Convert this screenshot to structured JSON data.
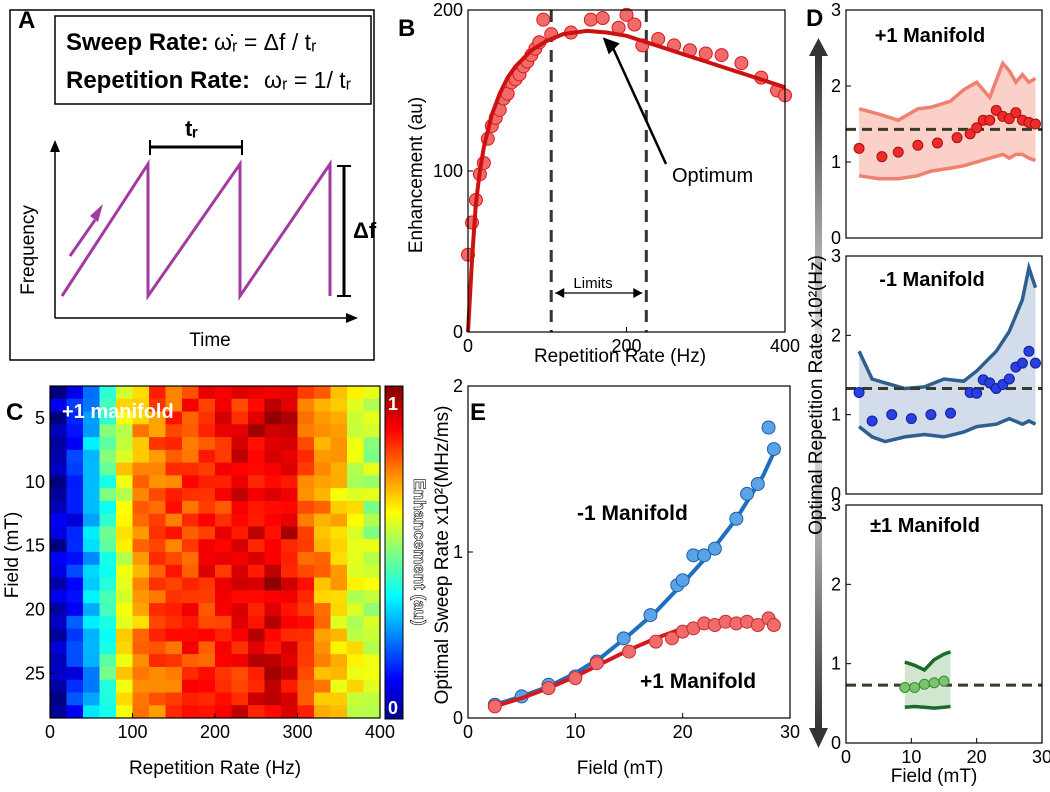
{
  "colors": {
    "red": "#d7191c",
    "red_marker": "#f26b6b",
    "red_band": "#fbd0c8",
    "red_band_edge": "#f08070",
    "blue": "#1f6fc1",
    "blue_marker": "#5aa3e6",
    "blue_dark": "#2e5f8f",
    "blue_band": "#d2dcea",
    "blue_point": "#2a3fe0",
    "green": "#1d6b2a",
    "green_band": "#d0e6cf",
    "green_marker": "#7ac46c",
    "purple": "#a33aa1",
    "dashed": "#3a3a2a"
  },
  "chart_data": [
    {
      "id": "A",
      "type": "diagram",
      "panel_label": "A",
      "title_lines": {
        "sweep_label": "Sweep Rate:",
        "sweep_formula": "ω̇ᵣ = Δf / tᵣ",
        "rep_label": "Repetition Rate:",
        "rep_formula": "ωᵣ = 1/ tᵣ"
      },
      "period_label": "tᵣ",
      "amplitude_label": "Δf",
      "xlabel": "Time",
      "ylabel": "Frequency",
      "sawtooth_periods": 3
    },
    {
      "id": "B",
      "type": "scatter",
      "panel_label": "B",
      "xlabel": "Repetition Rate (Hz)",
      "ylabel": "Enhancement (au)",
      "xlim": [
        0,
        400
      ],
      "ylim": [
        0,
        200
      ],
      "xticks": [
        0,
        200,
        400
      ],
      "yticks": [
        0,
        100,
        200
      ],
      "points": {
        "x": [
          0,
          5,
          10,
          15,
          20,
          25,
          30,
          35,
          40,
          45,
          50,
          55,
          60,
          65,
          70,
          75,
          80,
          85,
          90,
          95,
          105,
          130,
          155,
          170,
          190,
          200,
          210,
          220,
          240,
          260,
          280,
          300,
          320,
          345,
          370,
          390,
          400
        ],
        "y": [
          48,
          68,
          82,
          98,
          105,
          120,
          128,
          133,
          138,
          145,
          148,
          155,
          157,
          160,
          165,
          168,
          172,
          176,
          180,
          194,
          185,
          186,
          194,
          195,
          189,
          197,
          191,
          178,
          182,
          178,
          175,
          173,
          172,
          167,
          158,
          150,
          147
        ]
      },
      "fit": {
        "x": [
          0,
          5,
          10,
          15,
          20,
          30,
          40,
          50,
          60,
          80,
          100,
          120,
          150,
          175,
          200,
          225,
          250,
          275,
          300,
          325,
          350,
          375,
          400
        ],
        "y": [
          0,
          45,
          80,
          100,
          115,
          135,
          148,
          158,
          165,
          175,
          181,
          185,
          187,
          186,
          184,
          180,
          176,
          172,
          168,
          164,
          160,
          156,
          152
        ]
      },
      "vlines": [
        105,
        225
      ],
      "limits_label": "Limits",
      "annotation": {
        "text": "Optimum",
        "target_x": 170,
        "target_y": 183
      }
    },
    {
      "id": "C",
      "type": "heatmap",
      "panel_label": "C",
      "inner_label": "+1 manifold",
      "xlabel": "Repetition Rate (Hz)",
      "ylabel": "Field (mT)",
      "xlim": [
        0,
        400
      ],
      "ylim": [
        2.5,
        28.5
      ],
      "xticks": [
        0,
        100,
        200,
        300,
        400
      ],
      "yticks": [
        5,
        10,
        15,
        20,
        25
      ],
      "n_cols": 20,
      "n_rows": 26,
      "colorbar_label": "Enhancement (au)",
      "colorbar_ticks": [
        "1",
        "0"
      ],
      "profile": [
        0.05,
        0.15,
        0.3,
        0.45,
        0.62,
        0.72,
        0.78,
        0.8,
        0.82,
        0.84,
        0.85,
        0.87,
        0.9,
        0.92,
        0.9,
        0.8,
        0.72,
        0.66,
        0.6,
        0.55
      ]
    },
    {
      "id": "E",
      "type": "line",
      "panel_label": "E",
      "xlabel": "Field (mT)",
      "ylabel": "Optimal Sweep Rate x10²(MHz/ms)",
      "xlim": [
        0,
        30
      ],
      "ylim": [
        0,
        2
      ],
      "xticks": [
        0,
        10,
        20,
        30
      ],
      "yticks": [
        0,
        1,
        2
      ],
      "series": [
        {
          "name": "-1 Manifold",
          "points": {
            "x": [
              2.5,
              5,
              7.5,
              10,
              12,
              14.5,
              17,
              19.5,
              20,
              21,
              22,
              23,
              25,
              26,
              27,
              28,
              28.5
            ],
            "y": [
              0.08,
              0.13,
              0.2,
              0.25,
              0.34,
              0.48,
              0.62,
              0.8,
              0.83,
              0.98,
              0.98,
              1.02,
              1.2,
              1.35,
              1.41,
              1.75,
              1.62
            ]
          },
          "fit": {
            "x": [
              2.5,
              5,
              7.5,
              10,
              12.5,
              15,
              17.5,
              20,
              22.5,
              25,
              27.5,
              28.5
            ],
            "y": [
              0.08,
              0.13,
              0.19,
              0.27,
              0.37,
              0.5,
              0.64,
              0.81,
              0.99,
              1.2,
              1.46,
              1.6
            ]
          }
        },
        {
          "name": "+1 Manifold",
          "points": {
            "x": [
              2.5,
              7.5,
              10,
              12,
              15,
              17.5,
              19,
              20,
              21,
              22,
              23,
              24,
              25,
              26,
              27,
              28,
              28.5
            ],
            "y": [
              0.07,
              0.18,
              0.24,
              0.33,
              0.4,
              0.46,
              0.48,
              0.52,
              0.54,
              0.57,
              0.56,
              0.58,
              0.57,
              0.58,
              0.56,
              0.6,
              0.56
            ]
          },
          "fit": {
            "x": [
              2.5,
              5,
              7.5,
              10,
              12.5,
              15,
              17.5,
              20,
              22.5,
              25,
              27.5,
              28.5
            ],
            "y": [
              0.07,
              0.12,
              0.18,
              0.25,
              0.33,
              0.41,
              0.48,
              0.54,
              0.58,
              0.59,
              0.58,
              0.57
            ]
          }
        }
      ]
    },
    {
      "id": "D",
      "type": "scatter",
      "panel_label": "D",
      "ylabel": "Optimal Repetition Rate x10²(Hz)",
      "xlabel": "Field (mT)",
      "xlim": [
        0,
        30
      ],
      "ylim": [
        0,
        3
      ],
      "xticks": [
        0,
        10,
        20,
        30
      ],
      "yticks": [
        0,
        1,
        2,
        3
      ],
      "subplots": [
        {
          "name": "+1 Manifold",
          "mean": 1.43,
          "points": {
            "x": [
              2,
              5.5,
              8,
              11,
              14,
              17,
              19,
              20,
              21,
              22,
              23,
              24,
              25,
              26,
              27,
              28,
              29
            ],
            "y": [
              1.18,
              1.07,
              1.13,
              1.22,
              1.25,
              1.32,
              1.37,
              1.45,
              1.55,
              1.55,
              1.68,
              1.6,
              1.57,
              1.65,
              1.55,
              1.52,
              1.5
            ]
          },
          "band_upper": {
            "x": [
              2,
              5,
              8,
              11,
              13,
              16,
              18,
              20,
              22,
              24,
              25,
              26,
              27,
              28,
              29
            ],
            "y": [
              1.7,
              1.63,
              1.55,
              1.7,
              1.72,
              1.8,
              1.95,
              2.05,
              1.85,
              2.3,
              2.2,
              2.05,
              2.15,
              2.05,
              2.1
            ]
          },
          "band_lower": {
            "x": [
              2,
              5,
              8,
              11,
              13,
              16,
              18,
              20,
              22,
              24,
              25,
              26,
              27,
              28,
              29
            ],
            "y": [
              0.82,
              0.78,
              0.78,
              0.82,
              0.88,
              0.92,
              0.95,
              1,
              1.05,
              1.1,
              1.05,
              1.1,
              1.1,
              1.05,
              1.02
            ]
          }
        },
        {
          "name": "-1 Manifold",
          "mean": 1.33,
          "points": {
            "x": [
              2,
              4,
              7,
              10,
              13,
              16,
              19,
              20,
              21,
              22,
              23,
              24,
              25,
              26,
              27,
              28,
              29
            ],
            "y": [
              1.28,
              0.92,
              1,
              0.95,
              1,
              1.02,
              1.28,
              1.27,
              1.44,
              1.4,
              1.33,
              1.38,
              1.45,
              1.6,
              1.65,
              1.8,
              1.65
            ]
          },
          "band_upper": {
            "x": [
              2,
              4,
              6,
              9,
              12,
              15,
              18,
              20,
              23,
              25,
              27,
              28,
              29
            ],
            "y": [
              1.8,
              1.45,
              1.4,
              1.33,
              1.35,
              1.45,
              1.42,
              1.55,
              1.8,
              2.05,
              2.45,
              2.85,
              2.6
            ]
          },
          "band_lower": {
            "x": [
              2,
              4,
              6,
              9,
              12,
              15,
              18,
              20,
              23,
              25,
              27,
              28,
              29
            ],
            "y": [
              0.85,
              0.72,
              0.66,
              0.72,
              0.75,
              0.72,
              0.78,
              0.85,
              0.88,
              0.95,
              0.88,
              0.92,
              0.88
            ]
          }
        },
        {
          "name": "±1 Manifold",
          "mean": 0.73,
          "points": {
            "x": [
              9,
              10.5,
              12,
              13.5,
              15
            ],
            "y": [
              0.7,
              0.7,
              0.74,
              0.76,
              0.78
            ]
          },
          "band_upper": {
            "x": [
              9,
              10.5,
              12,
              13.5,
              15,
              16
            ],
            "y": [
              1.02,
              0.98,
              0.92,
              1.05,
              1.12,
              1.15
            ]
          },
          "band_lower": {
            "x": [
              9,
              10.5,
              12,
              13.5,
              15,
              16
            ],
            "y": [
              0.45,
              0.46,
              0.45,
              0.44,
              0.45,
              0.46
            ]
          }
        }
      ]
    }
  ]
}
